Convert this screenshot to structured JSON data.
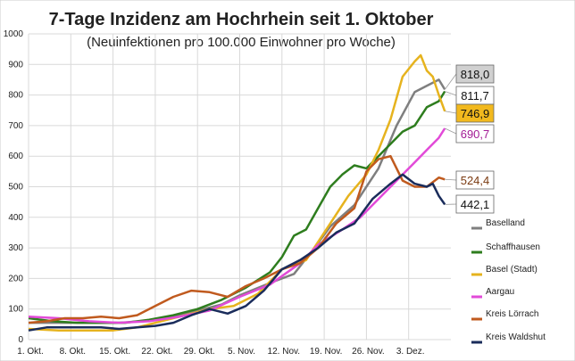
{
  "chart_data": {
    "type": "line",
    "title": "7-Tage Inzidenz am Hochrhein seit 1. Oktober",
    "subtitle": "(Neuinfektionen pro 100.000 Einwohner pro Woche)",
    "x_ticks": [
      "1. Okt.",
      "8. Okt.",
      "15. Okt.",
      "22. Okt.",
      "29. Okt.",
      "5. Nov.",
      "12. Nov.",
      "19. Nov.",
      "26. Nov.",
      "3. Dez."
    ],
    "x_tick_days": [
      0,
      7,
      14,
      21,
      28,
      35,
      42,
      49,
      56,
      63
    ],
    "ylim": [
      0,
      1000
    ],
    "y_ticks": [
      0,
      100,
      200,
      300,
      400,
      500,
      600,
      700,
      800,
      900,
      1000
    ],
    "grid": true,
    "legend_position": "right",
    "series": [
      {
        "name": "Baselland",
        "color": "#7f7f7f",
        "end_label": "818,0",
        "end_label_bg": "#d0d0d0",
        "days": [
          0,
          5,
          10,
          15,
          20,
          25,
          28,
          32,
          35,
          40,
          44,
          47,
          50,
          54,
          58,
          61,
          64,
          66,
          68,
          69
        ],
        "values": [
          55,
          55,
          55,
          55,
          62,
          80,
          95,
          115,
          145,
          185,
          215,
          290,
          370,
          440,
          560,
          700,
          810,
          830,
          850,
          818
        ]
      },
      {
        "name": "Schaffhausen",
        "color": "#2e7d1e",
        "end_label": "811,7",
        "end_label_bg": "#ffffff",
        "days": [
          0,
          4,
          8,
          12,
          16,
          20,
          24,
          28,
          32,
          36,
          40,
          42,
          44,
          46,
          48,
          50,
          52,
          54,
          56,
          58,
          60,
          62,
          64,
          66,
          68,
          69
        ],
        "values": [
          70,
          60,
          55,
          55,
          55,
          65,
          80,
          100,
          130,
          170,
          220,
          270,
          340,
          360,
          430,
          500,
          540,
          570,
          560,
          600,
          640,
          680,
          700,
          760,
          780,
          812
        ]
      },
      {
        "name": "Basel (Stadt)",
        "color": "#e6b31e",
        "end_label": "746,9",
        "end_label_bg": "#f2b91e",
        "days": [
          0,
          5,
          10,
          14,
          18,
          22,
          26,
          30,
          34,
          38,
          42,
          46,
          50,
          53,
          56,
          58,
          60,
          62,
          64,
          65,
          66,
          67,
          68,
          69
        ],
        "values": [
          35,
          30,
          30,
          30,
          40,
          60,
          80,
          100,
          110,
          150,
          230,
          260,
          380,
          470,
          540,
          620,
          720,
          860,
          910,
          930,
          880,
          860,
          800,
          747
        ]
      },
      {
        "name": "Aargau",
        "color": "#e24ad8",
        "end_label": "690,7",
        "end_label_bg": "#ffffff",
        "days": [
          0,
          5,
          10,
          15,
          20,
          25,
          30,
          35,
          40,
          45,
          48,
          52,
          55,
          58,
          61,
          64,
          66,
          68,
          69
        ],
        "values": [
          75,
          70,
          60,
          55,
          60,
          75,
          95,
          140,
          180,
          250,
          310,
          360,
          400,
          460,
          520,
          580,
          620,
          660,
          691
        ]
      },
      {
        "name": "Kreis Lörrach",
        "color": "#c05a1e",
        "end_label": "524,4",
        "end_label_bg": "#ffffff",
        "days": [
          0,
          3,
          6,
          9,
          12,
          15,
          18,
          21,
          24,
          27,
          30,
          33,
          36,
          39,
          42,
          45,
          48,
          51,
          54,
          56,
          58,
          60,
          62,
          64,
          66,
          68,
          69
        ],
        "values": [
          55,
          60,
          70,
          70,
          75,
          70,
          80,
          110,
          140,
          160,
          155,
          140,
          175,
          200,
          230,
          250,
          300,
          380,
          430,
          550,
          590,
          600,
          520,
          500,
          500,
          530,
          524
        ]
      },
      {
        "name": "Kreis Waldshut",
        "color": "#1a2c5b",
        "end_label": "442,1",
        "end_label_bg": "#ffffff",
        "days": [
          0,
          3,
          6,
          9,
          12,
          15,
          18,
          21,
          24,
          27,
          30,
          33,
          36,
          39,
          42,
          45,
          48,
          51,
          54,
          57,
          60,
          62,
          64,
          66,
          67,
          68,
          69
        ],
        "values": [
          30,
          40,
          40,
          40,
          40,
          35,
          40,
          45,
          55,
          80,
          100,
          85,
          110,
          160,
          230,
          260,
          300,
          350,
          380,
          460,
          510,
          540,
          510,
          500,
          510,
          470,
          442
        ]
      }
    ]
  }
}
